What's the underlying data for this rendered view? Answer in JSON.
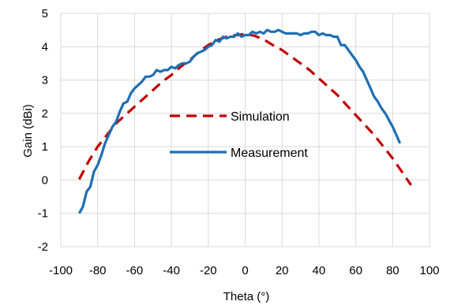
{
  "chart_data": {
    "type": "line",
    "title": "",
    "xlabel": "Theta (°)",
    "ylabel": "Gain (dBi)",
    "xlim": [
      -100,
      100
    ],
    "ylim": [
      -2,
      5
    ],
    "xticks": [
      -100,
      -80,
      -60,
      -40,
      -20,
      0,
      20,
      40,
      60,
      80,
      100
    ],
    "yticks": [
      -2,
      -1,
      0,
      1,
      2,
      3,
      4,
      5
    ],
    "grid": true,
    "legend": "inside-center",
    "series": [
      {
        "name": "Simulation",
        "color": "#c00000",
        "style": "dashed",
        "x": [
          -90,
          -85,
          -80,
          -75,
          -70,
          -65,
          -60,
          -55,
          -50,
          -45,
          -40,
          -35,
          -30,
          -25,
          -20,
          -15,
          -10,
          -5,
          0,
          5,
          10,
          15,
          20,
          25,
          30,
          35,
          40,
          45,
          50,
          55,
          60,
          65,
          70,
          75,
          80,
          85,
          90
        ],
        "y": [
          0.02,
          0.55,
          1.0,
          1.35,
          1.7,
          1.95,
          2.2,
          2.45,
          2.7,
          2.95,
          3.15,
          3.4,
          3.6,
          3.85,
          4.05,
          4.2,
          4.3,
          4.35,
          4.38,
          4.33,
          4.22,
          4.05,
          3.9,
          3.7,
          3.5,
          3.3,
          3.05,
          2.8,
          2.55,
          2.25,
          1.95,
          1.65,
          1.35,
          1.0,
          0.65,
          0.25,
          -0.15
        ]
      },
      {
        "name": "Measurement",
        "color": "#1f6fb4",
        "style": "solid",
        "x": [
          -90,
          -88,
          -86,
          -84,
          -82,
          -80,
          -78,
          -76,
          -74,
          -72,
          -70,
          -68,
          -66,
          -64,
          -62,
          -60,
          -58,
          -56,
          -54,
          -52,
          -50,
          -48,
          -46,
          -44,
          -42,
          -40,
          -38,
          -36,
          -34,
          -32,
          -30,
          -28,
          -26,
          -24,
          -22,
          -20,
          -18,
          -16,
          -14,
          -12,
          -10,
          -8,
          -6,
          -4,
          -2,
          0,
          2,
          4,
          6,
          8,
          10,
          12,
          14,
          16,
          18,
          20,
          22,
          24,
          26,
          28,
          30,
          32,
          34,
          36,
          38,
          40,
          42,
          44,
          46,
          48,
          50,
          52,
          54,
          56,
          58,
          60,
          62,
          64,
          66,
          68,
          70,
          72,
          74,
          76,
          78,
          80,
          82,
          84
        ],
        "y": [
          -1.0,
          -0.8,
          -0.35,
          -0.2,
          0.25,
          0.45,
          0.75,
          1.1,
          1.35,
          1.6,
          1.75,
          2.05,
          2.3,
          2.35,
          2.6,
          2.75,
          2.85,
          2.95,
          3.1,
          3.1,
          3.15,
          3.3,
          3.25,
          3.3,
          3.3,
          3.4,
          3.35,
          3.45,
          3.5,
          3.5,
          3.55,
          3.7,
          3.8,
          3.85,
          3.9,
          4.0,
          4.05,
          4.2,
          4.15,
          4.3,
          4.25,
          4.3,
          4.3,
          4.4,
          4.3,
          4.35,
          4.35,
          4.45,
          4.4,
          4.45,
          4.4,
          4.5,
          4.45,
          4.45,
          4.5,
          4.45,
          4.4,
          4.4,
          4.4,
          4.4,
          4.35,
          4.4,
          4.4,
          4.45,
          4.45,
          4.35,
          4.4,
          4.35,
          4.35,
          4.3,
          4.3,
          4.05,
          4.05,
          3.9,
          3.75,
          3.6,
          3.4,
          3.25,
          3.0,
          2.75,
          2.5,
          2.35,
          2.15,
          2.0,
          1.8,
          1.6,
          1.35,
          1.1
        ]
      }
    ]
  }
}
